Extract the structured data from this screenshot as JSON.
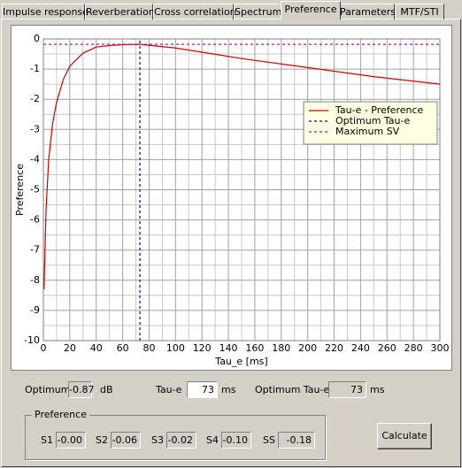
{
  "tabs": [
    "Impulse response",
    "Reverberation",
    "Cross correlation",
    "Spectrum",
    "Preference",
    "Parameters",
    "MTF/STI"
  ],
  "selected_tab": 4,
  "chart_data": {
    "type": "line",
    "xlabel": "Tau_e [ms]",
    "ylabel": "Preference",
    "xlim": [
      0,
      300
    ],
    "ylim": [
      -10,
      0
    ],
    "xticks": [
      0,
      20,
      40,
      60,
      80,
      100,
      120,
      140,
      160,
      180,
      200,
      220,
      240,
      260,
      280,
      300
    ],
    "yticks": [
      0,
      -1,
      -2,
      -3,
      -4,
      -5,
      -6,
      -7,
      -8,
      -9,
      -10
    ],
    "grid": true,
    "legend": "upper right",
    "series": [
      {
        "name": "Tau-e - Preference",
        "color": "#cc0000",
        "style": "solid",
        "x": [
          0.5,
          1,
          2,
          4,
          7,
          10,
          15,
          20,
          30,
          40,
          50,
          60,
          73,
          100,
          150,
          200,
          250,
          300
        ],
        "values": [
          -8.3,
          -7.4,
          -5.7,
          -4.0,
          -2.8,
          -2.1,
          -1.35,
          -0.9,
          -0.47,
          -0.27,
          -0.22,
          -0.19,
          -0.18,
          -0.3,
          -0.65,
          -0.95,
          -1.25,
          -1.5
        ]
      },
      {
        "name": "Optimum Tau-e",
        "color": "#0000cc",
        "style": "dashed",
        "x": [
          73,
          73
        ],
        "values": [
          -10,
          0
        ]
      },
      {
        "name": "Maximum SV",
        "color": "#cc00cc",
        "style": "dashed",
        "x": [
          0,
          300
        ],
        "values": [
          -0.18,
          -0.18
        ]
      }
    ]
  },
  "form": {
    "optimum_spl": {
      "label": "Optimum SPL",
      "value": "-0.87",
      "unit": "dB"
    },
    "tau_e": {
      "label": "Tau-e",
      "value": "73",
      "unit": "ms"
    },
    "optimum_tau_e": {
      "label": "Optimum Tau-e",
      "value": "73",
      "unit": "ms"
    },
    "preference_group": {
      "title": "Preference",
      "items": [
        {
          "label": "S1",
          "value": "-0.00"
        },
        {
          "label": "S2",
          "value": "-0.06"
        },
        {
          "label": "S3",
          "value": "-0.02"
        },
        {
          "label": "S4",
          "value": "-0.10"
        },
        {
          "label": "SS",
          "value": "-0.18"
        }
      ]
    },
    "button": "Calculate"
  }
}
